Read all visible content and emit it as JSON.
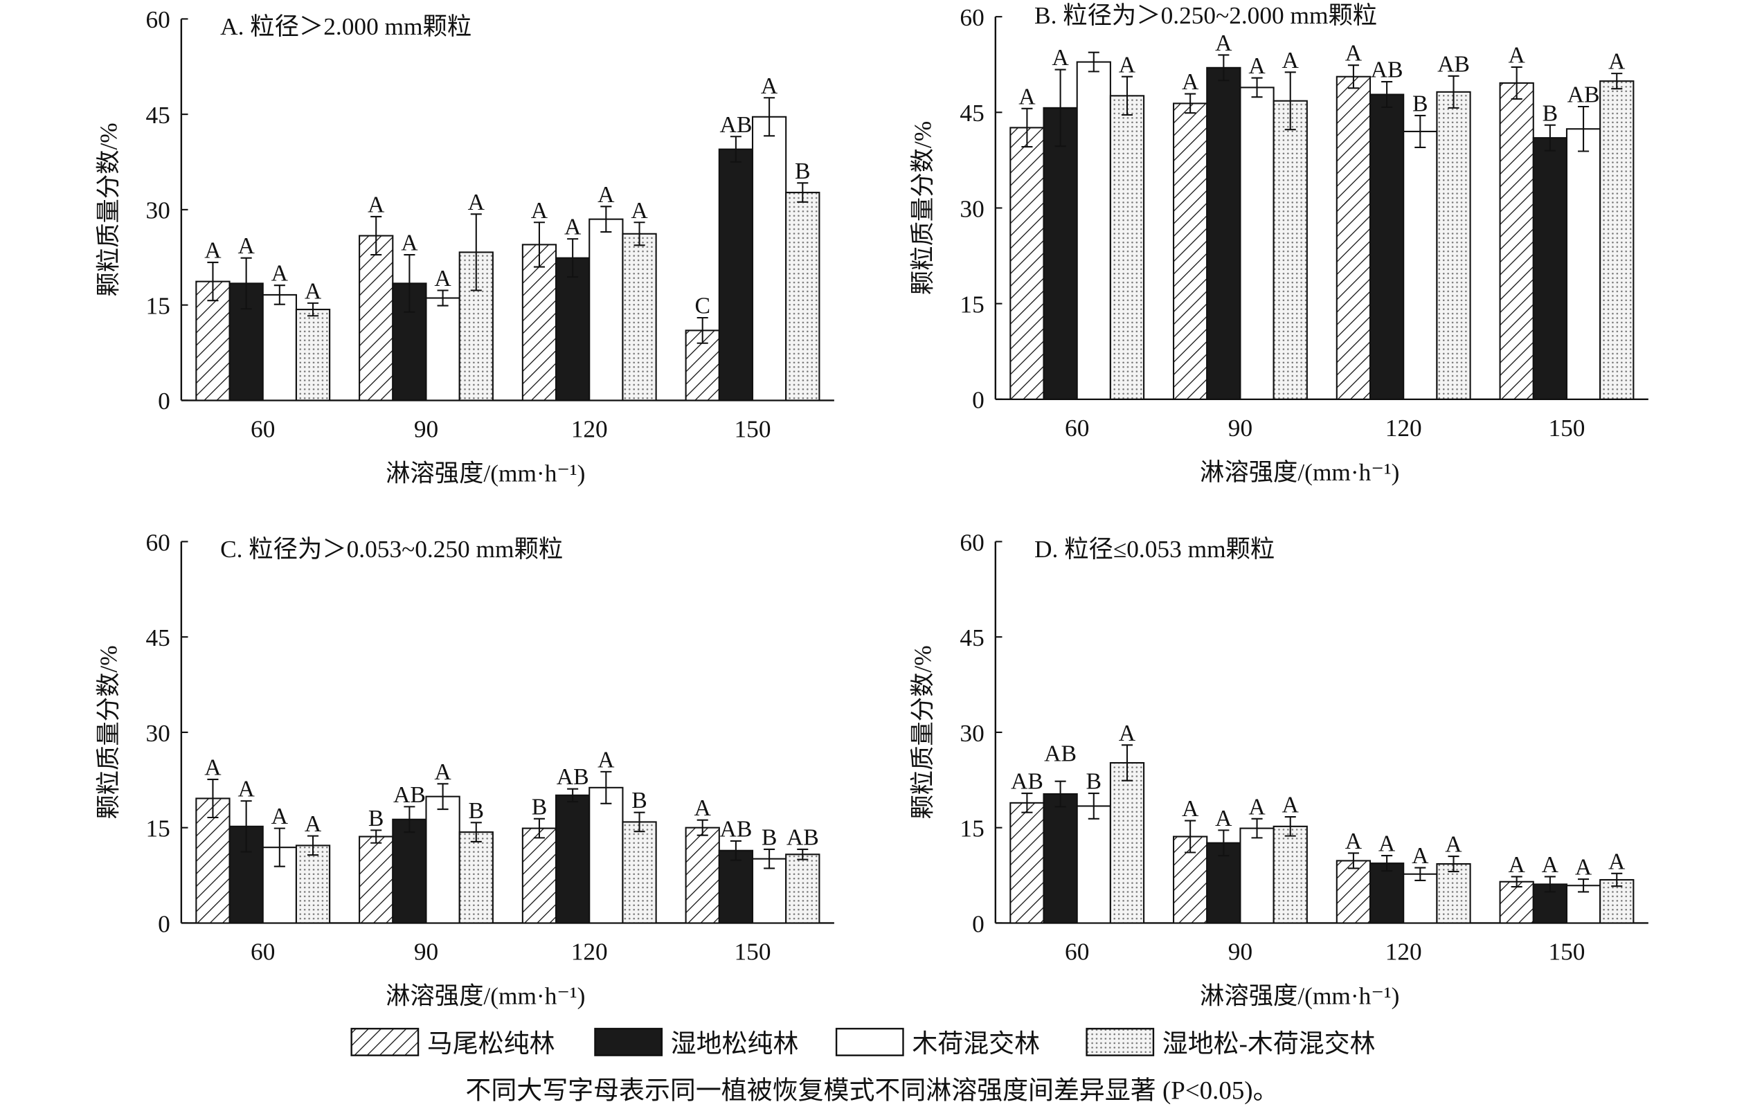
{
  "legend": [
    "马尾松纯林",
    "湿地松纯林",
    "木荷混交林",
    "湿地松-木荷混交林"
  ],
  "footnote": "不同大写字母表示同一植被恢复模式不同淋溶强度间差异显著 (P<0.05)。",
  "series_styles": [
    "hatched",
    "black",
    "white",
    "dotted"
  ],
  "chart_data": [
    {
      "type": "bar",
      "title": "A. 粒径＞2.000 mm颗粒",
      "xlabel": "淋溶强度/(mm·h⁻¹)",
      "ylabel": "颗粒质量分数/%",
      "categories": [
        "60",
        "90",
        "120",
        "150"
      ],
      "ylim": [
        0,
        60
      ],
      "yticks": [
        0,
        15,
        30,
        45,
        60
      ],
      "series": [
        {
          "name": "马尾松纯林",
          "values": [
            18.7,
            25.9,
            24.5,
            11.0
          ],
          "errors": [
            3,
            3,
            3.5,
            2
          ],
          "letters": [
            "A",
            "A",
            "A",
            "C"
          ]
        },
        {
          "name": "湿地松纯林",
          "values": [
            18.4,
            18.4,
            22.4,
            39.5
          ],
          "errors": [
            4,
            4.5,
            3,
            2
          ],
          "letters": [
            "A",
            "A",
            "A",
            "AB"
          ]
        },
        {
          "name": "木荷混交林",
          "values": [
            16.6,
            16.1,
            28.5,
            44.6
          ],
          "errors": [
            1.5,
            1.2,
            2,
            3
          ],
          "letters": [
            "A",
            "A",
            "A",
            "A"
          ]
        },
        {
          "name": "湿地松-木荷混交林",
          "values": [
            14.3,
            23.3,
            26.2,
            32.7
          ],
          "errors": [
            1,
            6,
            1.8,
            1.5
          ],
          "letters": [
            "A",
            "A",
            "A",
            "B"
          ]
        }
      ]
    },
    {
      "type": "bar",
      "title": "B. 粒径为＞0.250~2.000 mm颗粒",
      "xlabel": "淋溶强度/(mm·h⁻¹)",
      "ylabel": "颗粒质量分数/%",
      "categories": [
        "60",
        "90",
        "120",
        "150"
      ],
      "ylim": [
        0,
        60
      ],
      "yticks": [
        0,
        15,
        30,
        45,
        60
      ],
      "series": [
        {
          "name": "马尾松纯林",
          "values": [
            42.6,
            46.4,
            50.6,
            49.6
          ],
          "errors": [
            3,
            1.5,
            1.8,
            2.5
          ],
          "letters": [
            "A",
            "A",
            "A",
            "A"
          ]
        },
        {
          "name": "湿地松纯林",
          "values": [
            45.7,
            52.0,
            47.8,
            41.0
          ],
          "errors": [
            6,
            2,
            2,
            2
          ],
          "letters": [
            "A",
            "A",
            "AB",
            "B"
          ]
        },
        {
          "name": "木荷混交林",
          "values": [
            52.9,
            48.9,
            42.0,
            42.4
          ],
          "errors": [
            1.5,
            1.5,
            2.5,
            3.5
          ],
          "letters": [
            "A",
            "A",
            "B",
            "AB"
          ]
        },
        {
          "name": "湿地松-木荷混交林",
          "values": [
            47.6,
            46.8,
            48.2,
            49.9
          ],
          "errors": [
            3,
            4.5,
            2.5,
            1.2
          ],
          "letters": [
            "A",
            "A",
            "AB",
            "A"
          ]
        }
      ]
    },
    {
      "type": "bar",
      "title": "C. 粒径为＞0.053~0.250 mm颗粒",
      "xlabel": "淋溶强度/(mm·h⁻¹)",
      "ylabel": "颗粒质量分数/%",
      "categories": [
        "60",
        "90",
        "120",
        "150"
      ],
      "ylim": [
        0,
        60
      ],
      "yticks": [
        0,
        15,
        30,
        45,
        60
      ],
      "series": [
        {
          "name": "马尾松纯林",
          "values": [
            19.6,
            13.6,
            14.9,
            15.0
          ],
          "errors": [
            3,
            1,
            1.5,
            1.2
          ],
          "letters": [
            "A",
            "B",
            "B",
            "A"
          ]
        },
        {
          "name": "湿地松纯林",
          "values": [
            15.2,
            16.3,
            20.1,
            11.4
          ],
          "errors": [
            4,
            2,
            1,
            1.5
          ],
          "letters": [
            "A",
            "AB",
            "AB",
            "AB"
          ]
        },
        {
          "name": "木荷混交林",
          "values": [
            11.9,
            19.9,
            21.3,
            10.1
          ],
          "errors": [
            3,
            2,
            2.5,
            1.5
          ],
          "letters": [
            "A",
            "A",
            "A",
            "B"
          ]
        },
        {
          "name": "湿地松-木荷混交林",
          "values": [
            12.2,
            14.3,
            15.9,
            10.8
          ],
          "errors": [
            1.5,
            1.5,
            1.5,
            0.8
          ],
          "letters": [
            "A",
            "B",
            "B",
            "AB"
          ]
        }
      ]
    },
    {
      "type": "bar",
      "title": "D. 粒径≤0.053 mm颗粒",
      "xlabel": "淋溶强度/(mm·h⁻¹)",
      "ylabel": "颗粒质量分数/%",
      "categories": [
        "60",
        "90",
        "120",
        "150"
      ],
      "ylim": [
        0,
        60
      ],
      "yticks": [
        0,
        15,
        30,
        45,
        60
      ],
      "series": [
        {
          "name": "马尾松纯林",
          "values": [
            18.9,
            13.6,
            9.8,
            6.5
          ],
          "errors": [
            1.5,
            2.5,
            1.2,
            0.8
          ],
          "letters": [
            "AB",
            "A",
            "A",
            "A"
          ]
        },
        {
          "name": "湿地松纯林",
          "values": [
            20.3,
            12.6,
            9.4,
            6.1
          ],
          "errors": [
            2,
            2,
            1.2,
            1.2
          ],
          "letters": [
            "AB",
            "A",
            "A",
            "A"
          ]
        },
        {
          "name": "木荷混交林",
          "values": [
            18.4,
            14.9,
            7.7,
            5.9
          ],
          "errors": [
            2,
            1.5,
            1,
            1
          ],
          "letters": [
            "B",
            "A",
            "A",
            "A"
          ]
        },
        {
          "name": "湿地松-木荷混交林",
          "values": [
            25.2,
            15.2,
            9.3,
            6.8
          ],
          "errors": [
            2.8,
            1.5,
            1.2,
            1
          ],
          "letters": [
            "A",
            "A",
            "A",
            "A"
          ]
        }
      ]
    }
  ]
}
